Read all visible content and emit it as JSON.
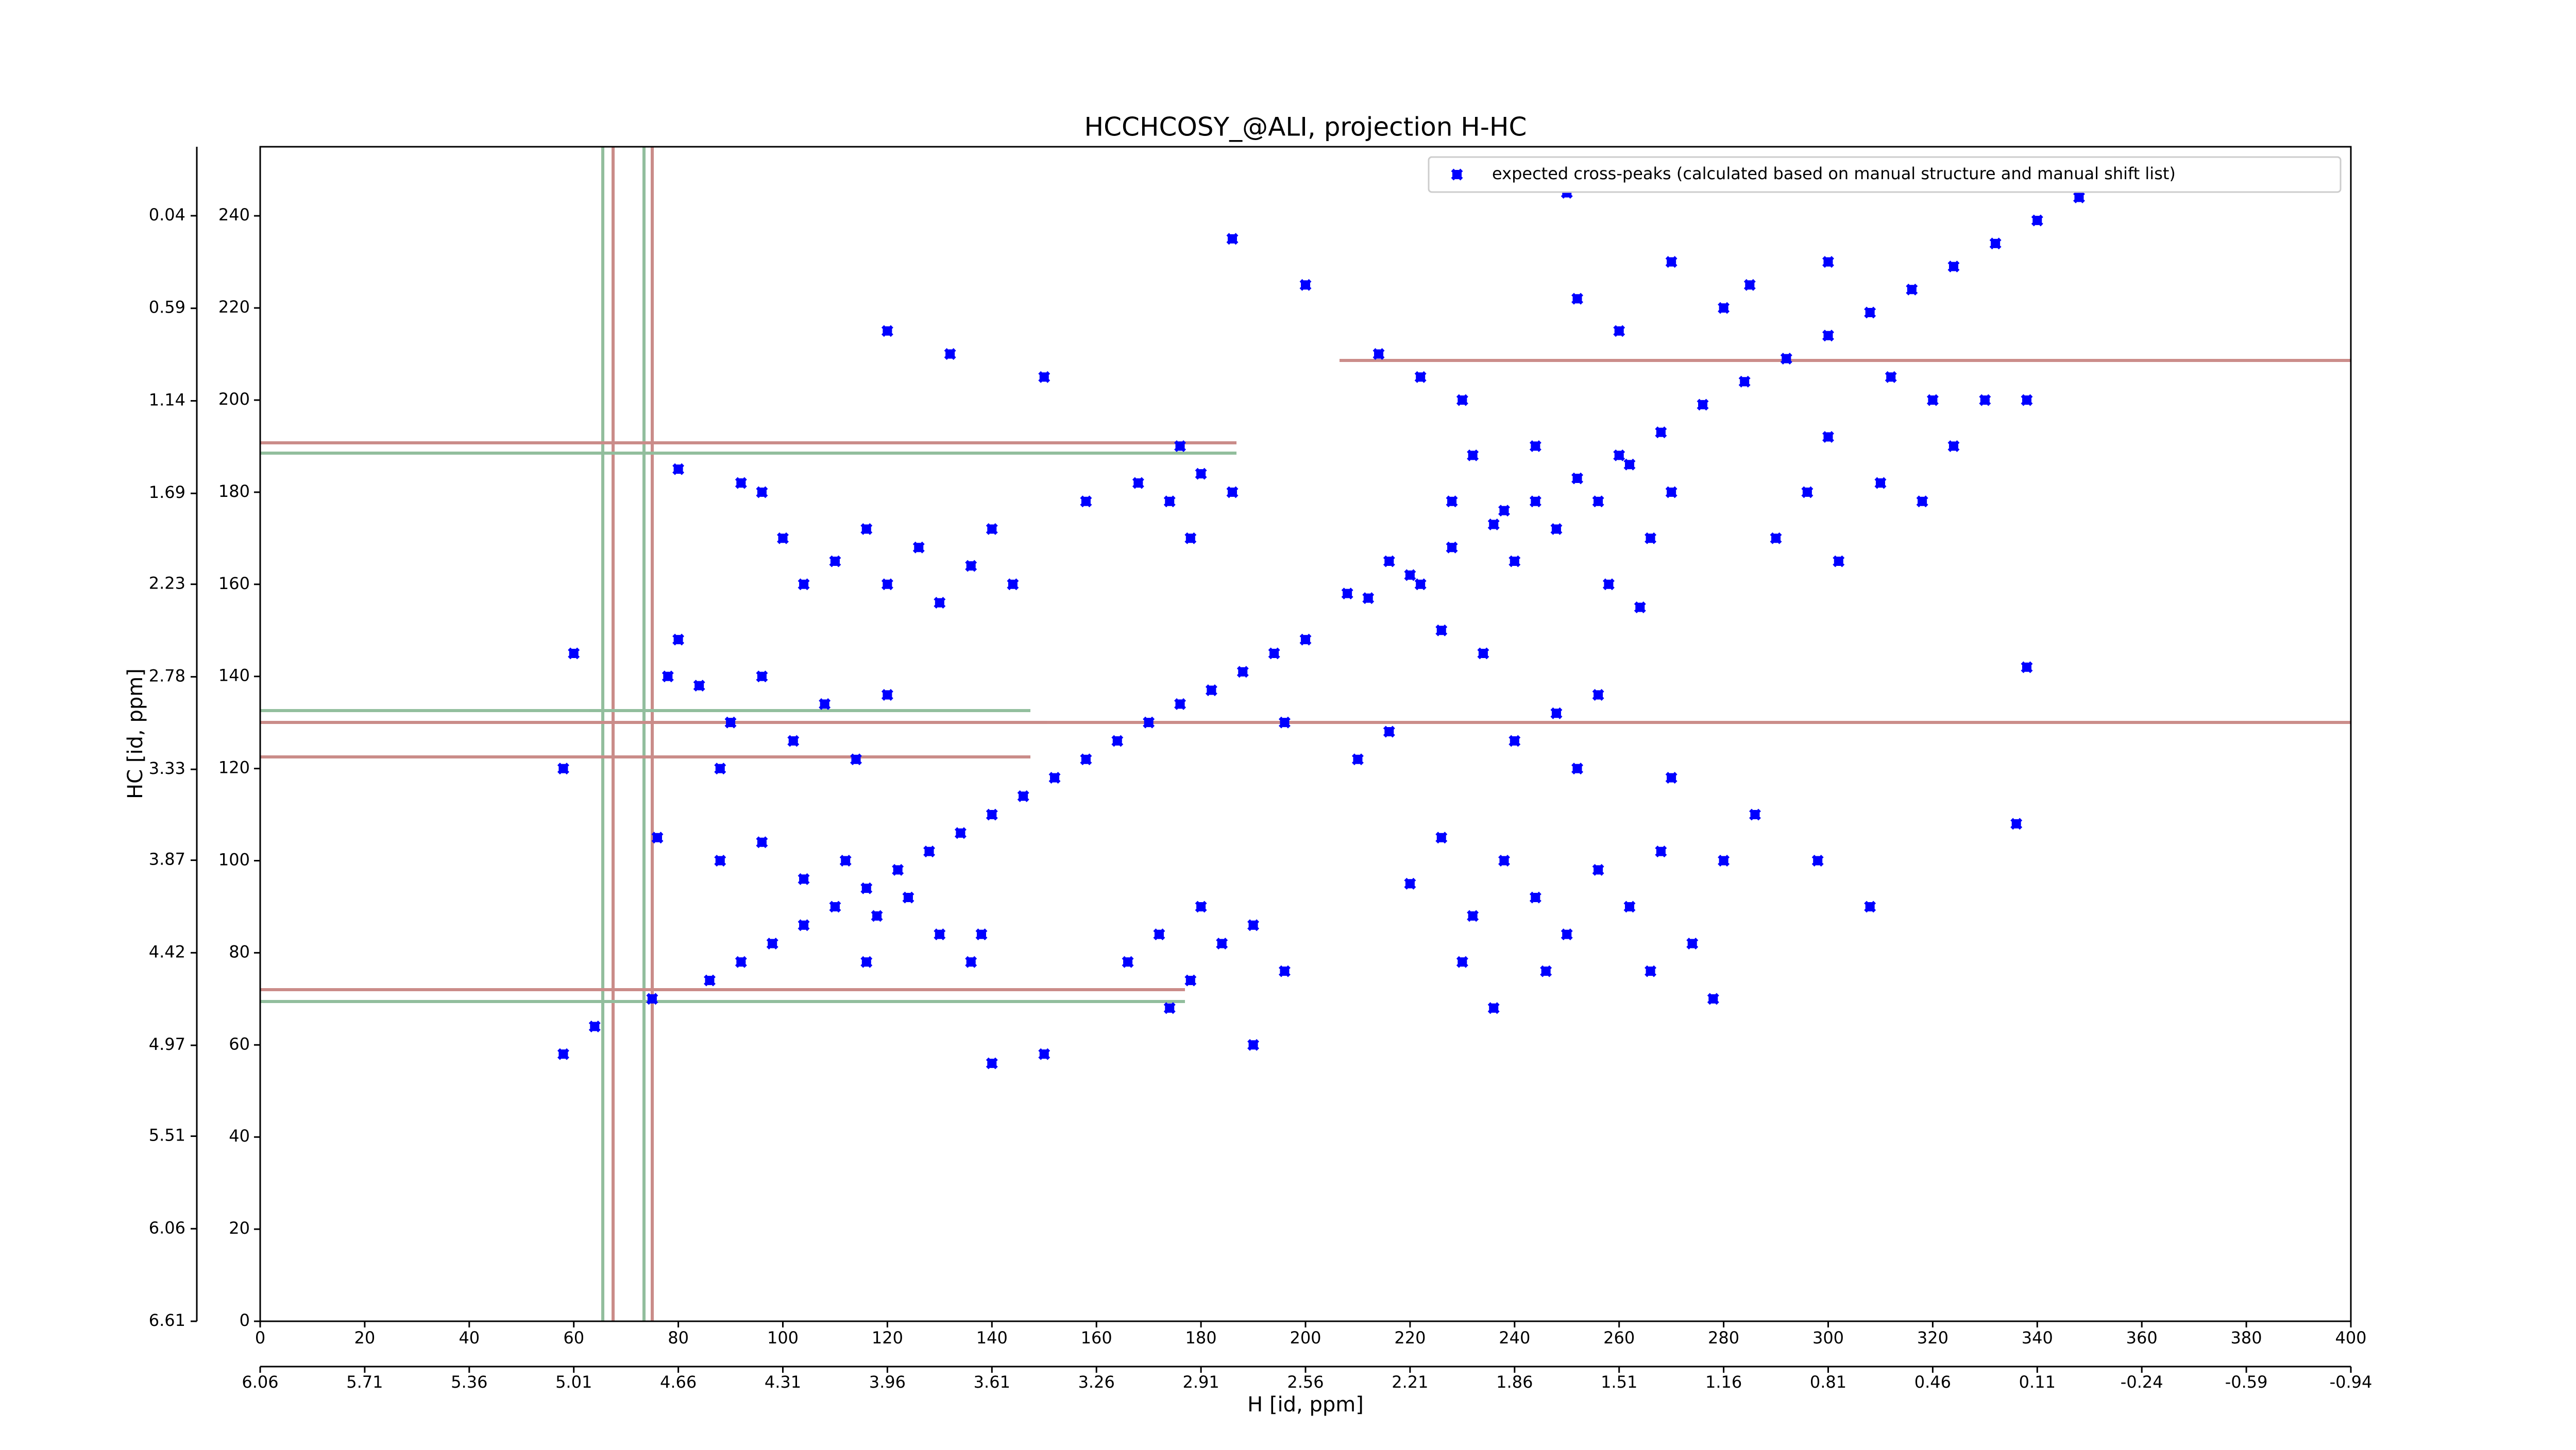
{
  "chart_data": {
    "type": "scatter",
    "title": "HCCHCOSY_@ALI, projection H-HC",
    "x_label": "H [id, ppm]",
    "y_label": "HC [id, ppm]",
    "xlim": [
      0,
      400
    ],
    "xticks": [
      0,
      20,
      40,
      60,
      80,
      100,
      120,
      140,
      160,
      180,
      200,
      220,
      240,
      260,
      280,
      300,
      320,
      340,
      360,
      380,
      400
    ],
    "ylim": [
      0,
      255
    ],
    "yticks": [
      0,
      20,
      40,
      60,
      80,
      100,
      120,
      140,
      160,
      180,
      200,
      220,
      240
    ],
    "x2lim": [
      6.06,
      -0.94
    ],
    "x2ticks": [
      6.06,
      5.71,
      5.36,
      5.01,
      4.66,
      4.31,
      3.96,
      3.61,
      3.26,
      2.91,
      2.56,
      2.21,
      1.86,
      1.51,
      1.16,
      0.81,
      0.46,
      0.11,
      -0.24,
      -0.59,
      -0.94
    ],
    "y2lim": [
      6.61,
      -0.37
    ],
    "y2ticks": [
      6.61,
      6.06,
      5.51,
      4.97,
      4.42,
      3.87,
      3.33,
      2.78,
      2.23,
      1.69,
      1.14,
      0.59,
      0.04
    ],
    "legend_position": "upper right",
    "series": [
      {
        "name": "expected cross-peaks (calculated based on manual structure and manual shift list)",
        "color": "#0000ff",
        "x": [
          86,
          92,
          98,
          104,
          110,
          116,
          122,
          128,
          134,
          140,
          146,
          152,
          158,
          164,
          170,
          176,
          182,
          188,
          194,
          200,
          212,
          220,
          228,
          236,
          244,
          252,
          260,
          268,
          276,
          284,
          292,
          300,
          308,
          316,
          324,
          332,
          340,
          348,
          232,
          238,
          244,
          248,
          256,
          262,
          266,
          270,
          240,
          228,
          222,
          216,
          208,
          226,
          234,
          258,
          264,
          290,
          296,
          302,
          310,
          318,
          324,
          330,
          312,
          300,
          96,
          100,
          104,
          110,
          116,
          120,
          126,
          130,
          136,
          140,
          144,
          92,
          168,
          174,
          180,
          186,
          178,
          220,
          226,
          232,
          238,
          244,
          250,
          256,
          262,
          268,
          274,
          230,
          246,
          266,
          166,
          172,
          178,
          184,
          190,
          196,
          180,
          174,
          84,
          90,
          96,
          102,
          108,
          114,
          120,
          88,
          80,
          78,
          88,
          96,
          104,
          112,
          118,
          124,
          130,
          136,
          116,
          58,
          64,
          75,
          60,
          58,
          76,
          80,
          140,
          138,
          190,
          150,
          236,
          280,
          285,
          250,
          270,
          300,
          320,
          338,
          336,
          338,
          240,
          248,
          256,
          252,
          270,
          216,
          196,
          210,
          150,
          120,
          132,
          186,
          176,
          158,
          200,
          214,
          222,
          230,
          260,
          286,
          280,
          298,
          308,
          278,
          252
        ],
        "values": [
          74,
          78,
          82,
          86,
          90,
          94,
          98,
          102,
          106,
          110,
          114,
          118,
          122,
          126,
          130,
          134,
          137,
          141,
          145,
          148,
          157,
          162,
          168,
          173,
          178,
          183,
          188,
          193,
          199,
          204,
          209,
          214,
          219,
          224,
          229,
          234,
          239,
          244,
          188,
          176,
          190,
          172,
          178,
          186,
          170,
          180,
          165,
          178,
          160,
          165,
          158,
          150,
          145,
          160,
          155,
          170,
          180,
          165,
          182,
          178,
          190,
          200,
          205,
          192,
          180,
          170,
          160,
          165,
          172,
          160,
          168,
          156,
          164,
          172,
          160,
          182,
          182,
          178,
          184,
          180,
          170,
          95,
          105,
          88,
          100,
          92,
          84,
          98,
          90,
          102,
          82,
          78,
          76,
          76,
          78,
          84,
          74,
          82,
          86,
          76,
          90,
          68,
          138,
          130,
          140,
          126,
          134,
          122,
          136,
          120,
          148,
          140,
          100,
          104,
          96,
          100,
          88,
          92,
          84,
          78,
          78,
          58,
          64,
          70,
          145,
          120,
          105,
          185,
          56,
          84,
          60,
          58,
          68,
          220,
          225,
          245,
          230,
          230,
          200,
          200,
          108,
          142,
          126,
          132,
          136,
          120,
          118,
          128,
          130,
          122,
          205,
          215,
          210,
          235,
          190,
          178,
          225,
          210,
          205,
          200,
          215,
          110,
          100,
          100,
          90,
          70,
          222
        ]
      }
    ]
  }
}
